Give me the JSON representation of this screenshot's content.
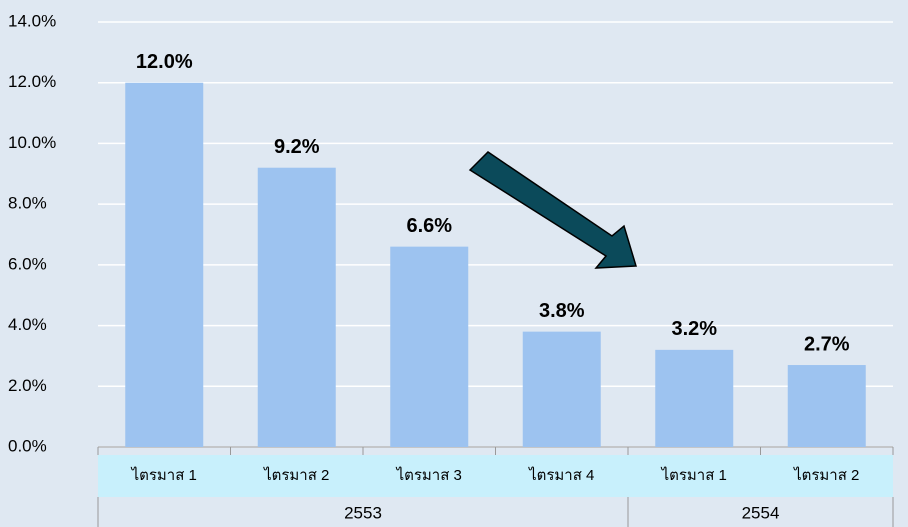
{
  "chart_data": {
    "type": "bar",
    "categories": [
      "ไตรมาส 1",
      "ไตรมาส 2",
      "ไตรมาส 3",
      "ไตรมาส 4",
      "ไตรมาส 1",
      "ไตรมาส 2"
    ],
    "values": [
      12.0,
      9.2,
      6.6,
      3.8,
      3.2,
      2.7
    ],
    "value_labels": [
      "12.0%",
      "9.2%",
      "6.6%",
      "3.8%",
      "3.2%",
      "2.7%"
    ],
    "groups": [
      {
        "label": "2553",
        "count": 4
      },
      {
        "label": "2554",
        "count": 2
      }
    ],
    "color": "#9dc3f0",
    "ylim": [
      0,
      14
    ],
    "yticks": [
      {
        "value": 0,
        "label": "0.0%"
      },
      {
        "value": 2,
        "label": "2.0%"
      },
      {
        "value": 4,
        "label": "4.0%"
      },
      {
        "value": 6,
        "label": "6.0%"
      },
      {
        "value": 8,
        "label": "8.0%"
      },
      {
        "value": 10,
        "label": "10.0%"
      },
      {
        "value": 12,
        "label": "12.0%"
      },
      {
        "value": 14,
        "label": "14.0%"
      }
    ],
    "grid": true
  }
}
